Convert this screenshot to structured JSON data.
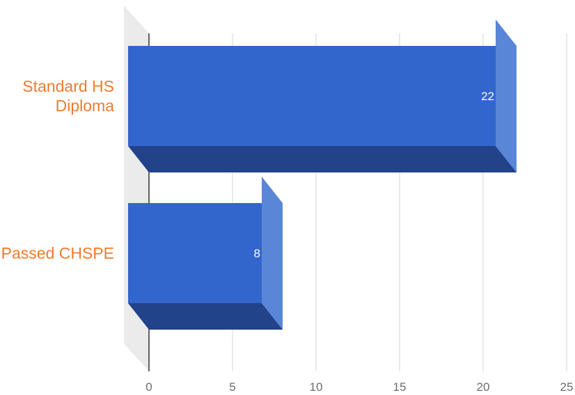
{
  "chart_data": {
    "type": "bar",
    "orientation": "horizontal",
    "style": "3d",
    "categories": [
      "Standard HS\nDiploma",
      "Passed CHSPE"
    ],
    "values": [
      22,
      8
    ],
    "data_labels": [
      "22",
      "8"
    ],
    "x_ticks": [
      "0",
      "5",
      "10",
      "15",
      "20",
      "25"
    ],
    "xlim": [
      0,
      25
    ],
    "grid": true,
    "legend": "none",
    "title": "",
    "xlabel": "",
    "ylabel": ""
  },
  "colors": {
    "bar_front": "#3366cc",
    "bar_side": "#5a86d8",
    "bar_bottom": "#22428a",
    "category_label": "#ef7b2d",
    "gridline": "#d4d4d4",
    "baseline": "#333333",
    "floor": "#ebebeb"
  }
}
